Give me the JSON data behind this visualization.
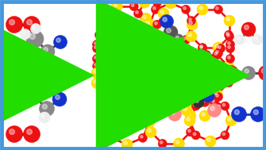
{
  "background_color": "#ffffff",
  "border_color": "#4499dd",
  "border_lw": 3.5,
  "fig_width": 3.35,
  "fig_height": 1.89,
  "dpi": 100,
  "arrow_color": "#22dd00",
  "yellow": "#ffdd00",
  "red": "#ee1111",
  "dark_red": "#cc0000",
  "gray": "#888888",
  "dark_gray": "#444444",
  "blue": "#1133cc",
  "white_atom": "#eeeeee",
  "pink": "#ffaaaa",
  "salmon": "#ff8888"
}
